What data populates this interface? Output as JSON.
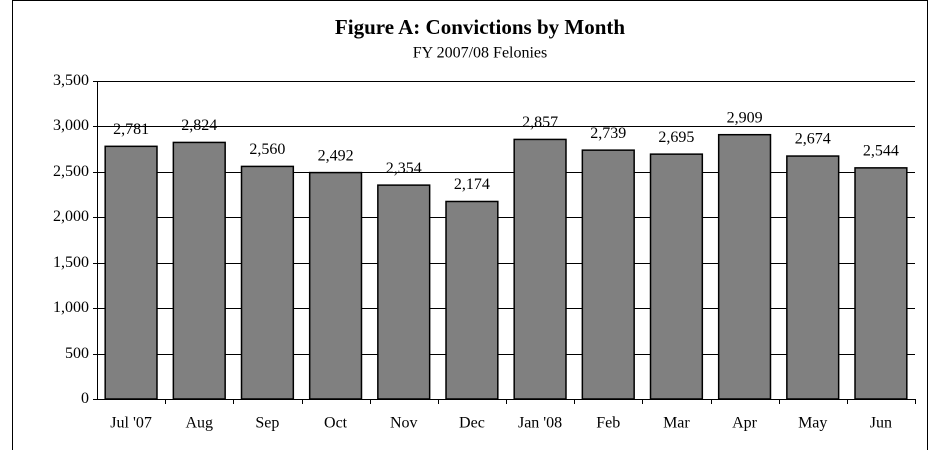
{
  "chart_data": {
    "type": "bar",
    "title": "Figure A:  Convictions by Month",
    "subtitle": "FY 2007/08 Felonies",
    "categories": [
      "Jul '07",
      "Aug",
      "Sep",
      "Oct",
      "Nov",
      "Dec",
      "Jan '08",
      "Feb",
      "Mar",
      "Apr",
      "May",
      "Jun"
    ],
    "values": [
      2781,
      2824,
      2560,
      2492,
      2354,
      2174,
      2857,
      2739,
      2695,
      2909,
      2674,
      2544
    ],
    "value_labels": [
      "2,781",
      "2,824",
      "2,560",
      "2,492",
      "2,354",
      "2,174",
      "2,857",
      "2,739",
      "2,695",
      "2,909",
      "2,674",
      "2,544"
    ],
    "color": "#808080",
    "ylim": [
      0,
      3500
    ],
    "yticks": [
      0,
      500,
      {
        "value": 1000,
        "label": "1,000"
      },
      {
        "value": 1500,
        "label": "1,500"
      },
      {
        "value": 2000,
        "label": "2,000"
      },
      {
        "value": 2500,
        "label": "2,500"
      },
      {
        "value": 3000,
        "label": "3,000"
      },
      {
        "value": 3500,
        "label": "3,500"
      }
    ],
    "grid": true
  }
}
